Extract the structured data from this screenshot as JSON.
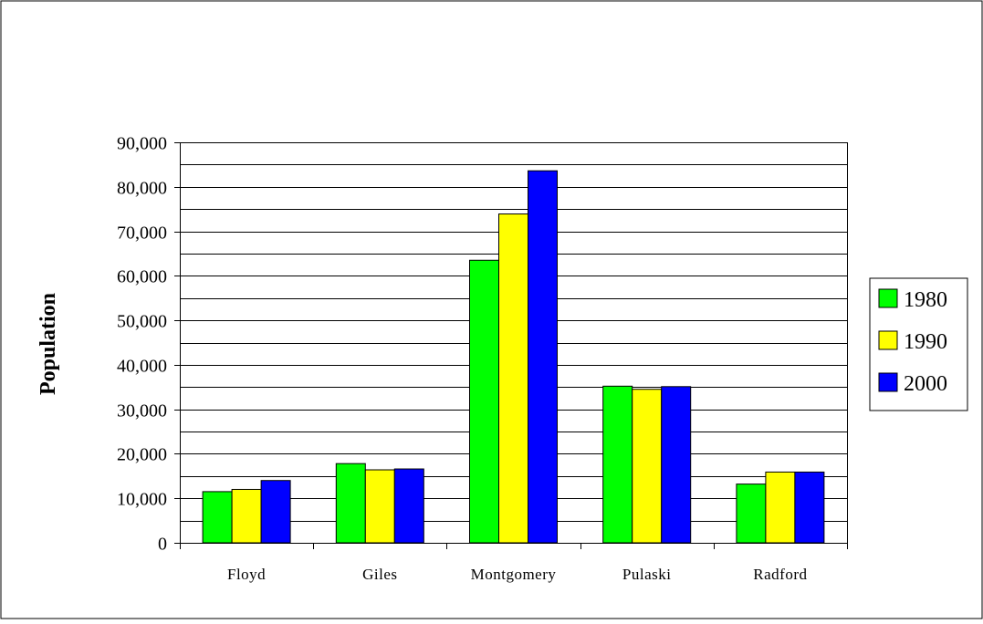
{
  "chart_data": {
    "type": "bar",
    "title": "",
    "xlabel": "",
    "ylabel": "Population",
    "ylim": [
      0,
      90000
    ],
    "ytick_values": [
      0,
      10000,
      20000,
      30000,
      40000,
      50000,
      60000,
      70000,
      80000,
      90000
    ],
    "ytick_labels": [
      "0",
      "10,000",
      "20,000",
      "30,000",
      "40,000",
      "50,000",
      "60,000",
      "70,000",
      "80,000",
      "90,000"
    ],
    "minor_gridline_step": 5000,
    "grid": true,
    "legend_position": "right",
    "categories": [
      "Floyd",
      "Giles",
      "Montgomery",
      "Pulaski",
      "Radford"
    ],
    "series": [
      {
        "name": "1980",
        "color": "#00ff00",
        "values": [
          11500,
          17800,
          63500,
          35200,
          13200
        ]
      },
      {
        "name": "1990",
        "color": "#ffff00",
        "values": [
          12000,
          16400,
          73900,
          34500,
          15900
        ]
      },
      {
        "name": "2000",
        "color": "#0000ff",
        "values": [
          14000,
          16600,
          83600,
          35100,
          15900
        ]
      }
    ]
  }
}
